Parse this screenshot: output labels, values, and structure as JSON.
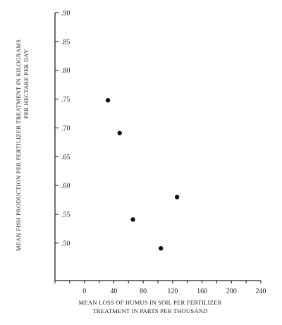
{
  "chart_data": {
    "type": "scatter",
    "xlabel_lines": [
      "MEAN LOSS OF HUMUS IN SOIL PER FERTILIZER",
      "TREATMENT IN PARTS PER THOUSAND"
    ],
    "ylabel_lines": [
      "MEAN FISH PRODUCTION PER FERTILIZER TREATMENT IN KILOGRAMS",
      "PER HECTARE PER DAY"
    ],
    "xlim": [
      -40,
      240
    ],
    "ylim": [
      0.435,
      0.9
    ],
    "x_ticks": [
      0,
      40,
      80,
      120,
      160,
      200,
      240
    ],
    "x_tick_labels": [
      "0",
      "40",
      "80",
      "120",
      "160",
      "200",
      "240"
    ],
    "y_ticks": [
      0.5,
      0.55,
      0.6,
      0.65,
      0.7,
      0.75,
      0.8,
      0.85,
      0.9
    ],
    "y_tick_labels": [
      ".50",
      ".55",
      ".60",
      ".65",
      ".70",
      ".75",
      ".80",
      ".85",
      ".90"
    ],
    "grid": false,
    "points": [
      {
        "x": 32,
        "y": 0.748
      },
      {
        "x": 48,
        "y": 0.691
      },
      {
        "x": 66,
        "y": 0.541
      },
      {
        "x": 104,
        "y": 0.491
      },
      {
        "x": 126,
        "y": 0.58
      }
    ]
  }
}
